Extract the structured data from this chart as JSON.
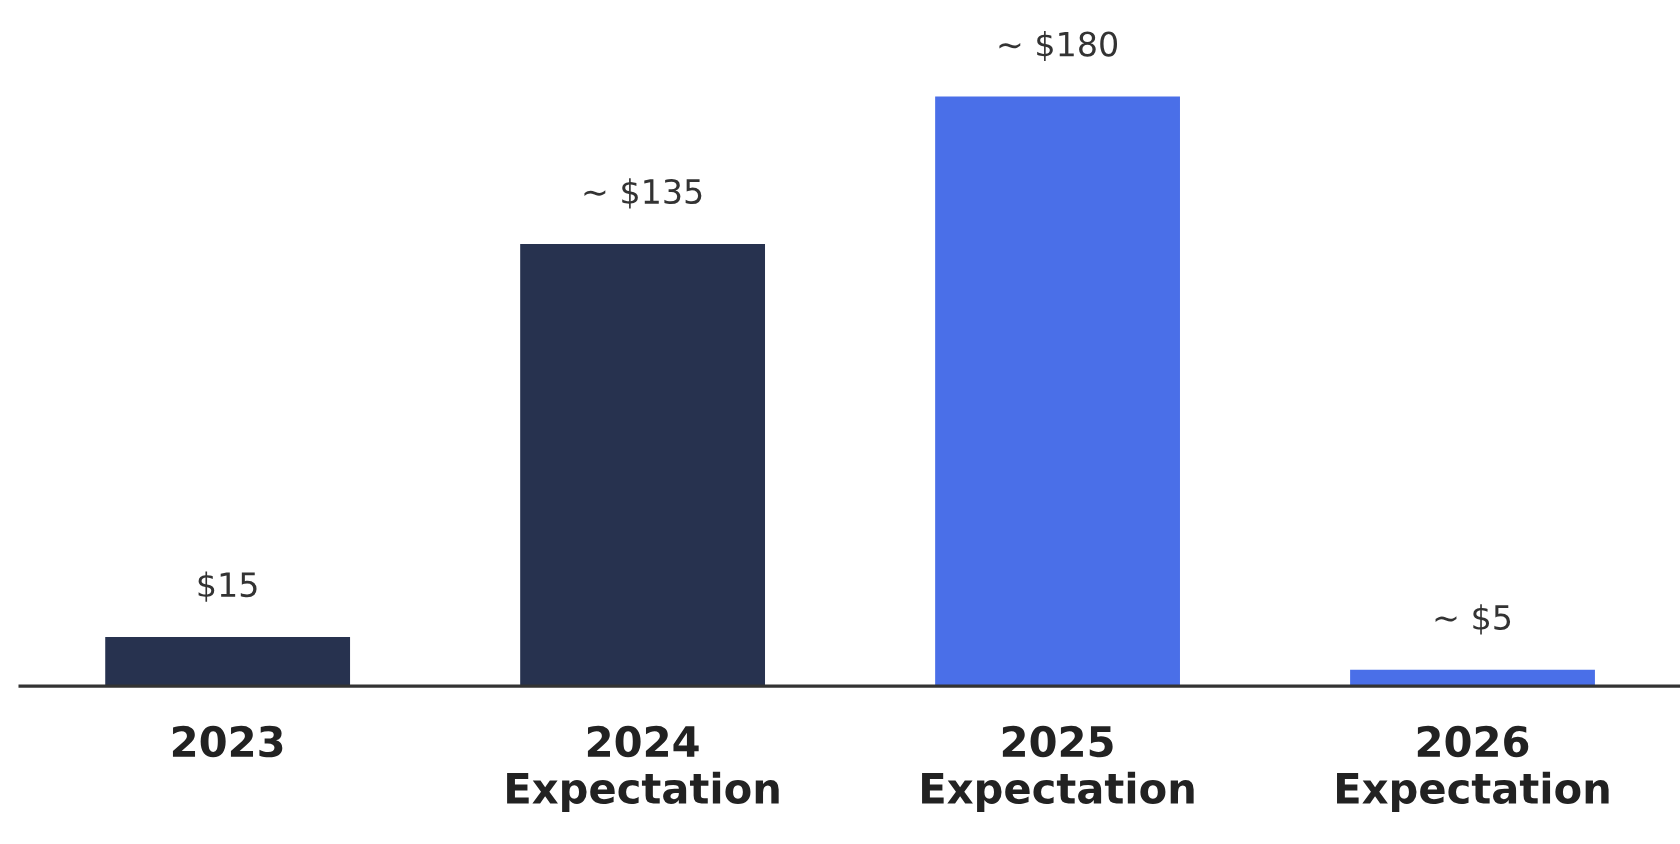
{
  "chart_data": {
    "type": "bar",
    "categories": [
      "2023",
      "2024\nExpectation",
      "2025\nExpectation",
      "2026\nExpectation"
    ],
    "values": [
      15,
      135,
      180,
      5
    ],
    "value_labels": [
      "$15",
      "~ $135",
      "~ $180",
      "~ $5"
    ],
    "colors": [
      "#27324f",
      "#27324f",
      "#4a6fe8",
      "#4a6fe8"
    ],
    "tick_labels": "x",
    "grid": false
  }
}
